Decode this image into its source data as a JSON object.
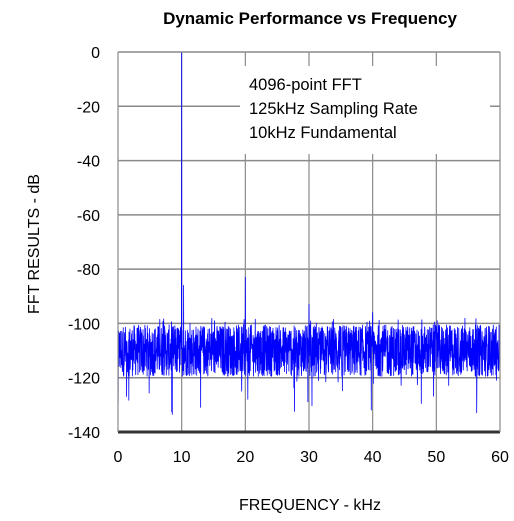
{
  "chart_data": {
    "type": "line",
    "title": "Dynamic Performance vs Frequency",
    "xlabel": "FREQUENCY - kHz",
    "ylabel": "FFT RESULTS - dB",
    "xlim": [
      0,
      60
    ],
    "ylim": [
      -140,
      0
    ],
    "xticks": [
      "0",
      "10",
      "20",
      "30",
      "40",
      "50",
      "60"
    ],
    "yticks": [
      "0",
      "-20",
      "-40",
      "-60",
      "-80",
      "-100",
      "-120",
      "-140"
    ],
    "grid": true,
    "legend": "none",
    "annotations": [
      "4096-point FFT",
      "125kHz Sampling Rate",
      "10kHz Fundamental"
    ],
    "noise_floor_db": [
      -120,
      -100
    ],
    "noise_floor_center_db": -110,
    "peaks": [
      {
        "x": 0,
        "y": -89
      },
      {
        "x": 10,
        "y": 0
      },
      {
        "x": 10.3,
        "y": -86
      },
      {
        "x": 20,
        "y": -83
      },
      {
        "x": 30,
        "y": -93
      },
      {
        "x": 40,
        "y": -96
      }
    ],
    "series_color": "#0000ff"
  }
}
